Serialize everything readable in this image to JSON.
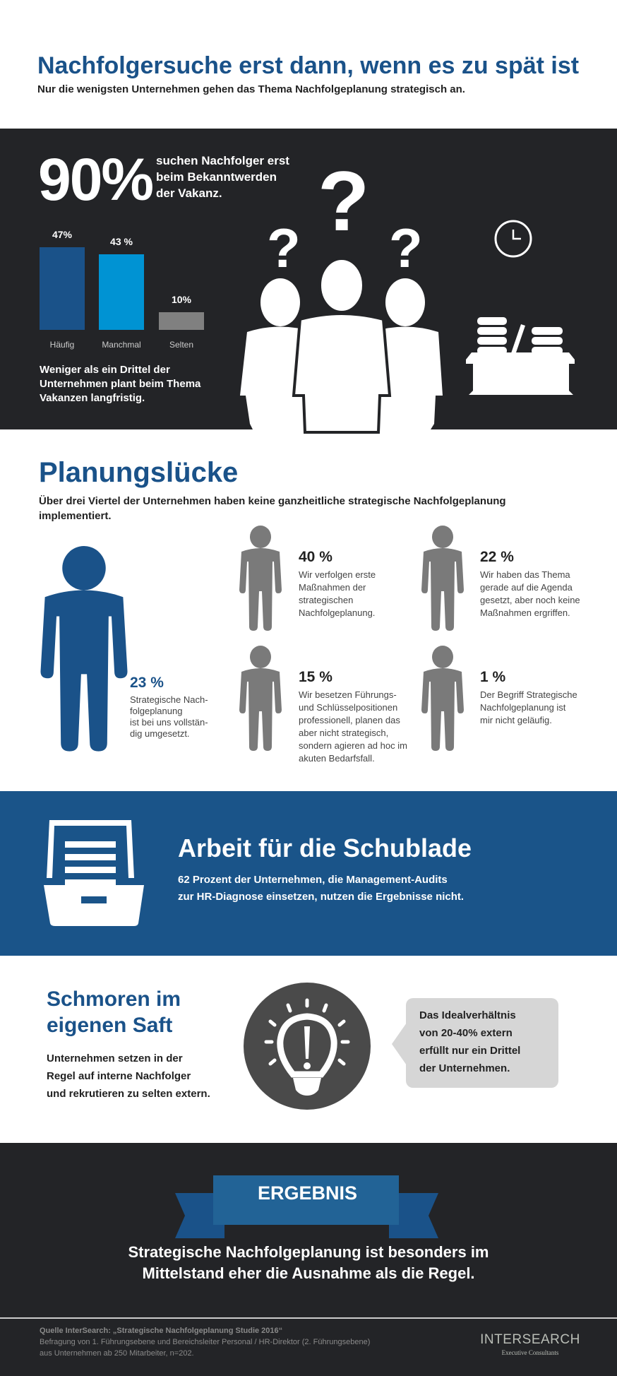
{
  "header": {
    "title": "Nachfolgersuche erst dann, wenn es zu spät ist",
    "subtitle": "Nur die wenigsten Unternehmen gehen das Thema Nachfolgeplanung strategisch an."
  },
  "vakanz": {
    "big_percent": "90%",
    "big_text": [
      "suchen Nachfolger erst",
      "beim Bekanntwerden",
      "der Vakanz."
    ],
    "summary": [
      "Weniger als ein Drittel der",
      "Unternehmen plant beim Thema",
      "Vakanzen langfristig."
    ],
    "question_mark": "?"
  },
  "chart_data": {
    "type": "bar",
    "categories": [
      "Häufig",
      "Manchmal",
      "Selten"
    ],
    "values": [
      47,
      43,
      10
    ],
    "value_labels": [
      "47%",
      "43 %",
      "10%"
    ],
    "colors": [
      "#1a5289",
      "#0093d3",
      "#808080"
    ]
  },
  "planung": {
    "title": "Planungslücke",
    "subtitle": [
      "Über drei Viertel der Unternehmen haben keine ganzheitliche strategische Nachfolgeplanung",
      "implementiert."
    ],
    "main": {
      "percent": "23 %",
      "text": [
        "Strategische Nach-",
        "folgeplanung",
        "ist bei uns vollstän-",
        "dig umgesetzt."
      ],
      "color": "#1a5289"
    },
    "items": [
      {
        "percent": "40 %",
        "text": [
          "Wir verfolgen erste",
          "Maßnahmen der",
          "strategischen",
          "Nachfolgeplanung."
        ]
      },
      {
        "percent": "22 %",
        "text": [
          "Wir haben das Thema",
          "gerade auf die Agenda",
          "gesetzt, aber noch keine",
          "Maßnahmen ergriffen."
        ]
      },
      {
        "percent": "15 %",
        "text": [
          "Wir besetzen Führungs-",
          "und Schlüsselpositionen",
          "professionell, planen das",
          "aber nicht strategisch,",
          "sondern agieren ad hoc im",
          "akuten Bedarfsfall."
        ]
      },
      {
        "percent": "1 %",
        "text": [
          "Der Begriff Strategische",
          "Nachfolgeplanung ist",
          "mir nicht geläufig."
        ]
      }
    ]
  },
  "schublade": {
    "title": "Arbeit für die Schublade",
    "text": [
      "62 Prozent der Unternehmen, die Management-Audits",
      "zur HR-Diagnose einsetzen, nutzen die Ergebnisse nicht."
    ]
  },
  "schmoren": {
    "title": [
      "Schmoren im",
      "eigenen Saft"
    ],
    "text": [
      "Unternehmen setzen in der",
      "Regel auf interne Nachfolger",
      "und rekrutieren zu selten extern."
    ],
    "bubble": [
      "Das Idealverhältnis",
      "von 20-40% extern",
      "erfüllt nur ein Drittel",
      "der Unternehmen."
    ]
  },
  "ergebnis": {
    "label": "ERGEBNIS",
    "text": [
      "Strategische Nachfolgeplanung ist besonders im",
      "Mittelstand eher die Ausnahme als die Regel."
    ]
  },
  "footer": {
    "source": "Quelle InterSearch: „Strategische Nachfolgeplanung Studie 2016“",
    "lines": [
      "Befragung von 1. Führungsebene und Bereichsleiter Personal / HR-Direktor (2. Führungsebene)",
      "aus Unternehmen ab 250 Mitarbeiter, n=202."
    ],
    "logo": "INTERSEARCH",
    "logo_sub": "Executive Consultants"
  }
}
